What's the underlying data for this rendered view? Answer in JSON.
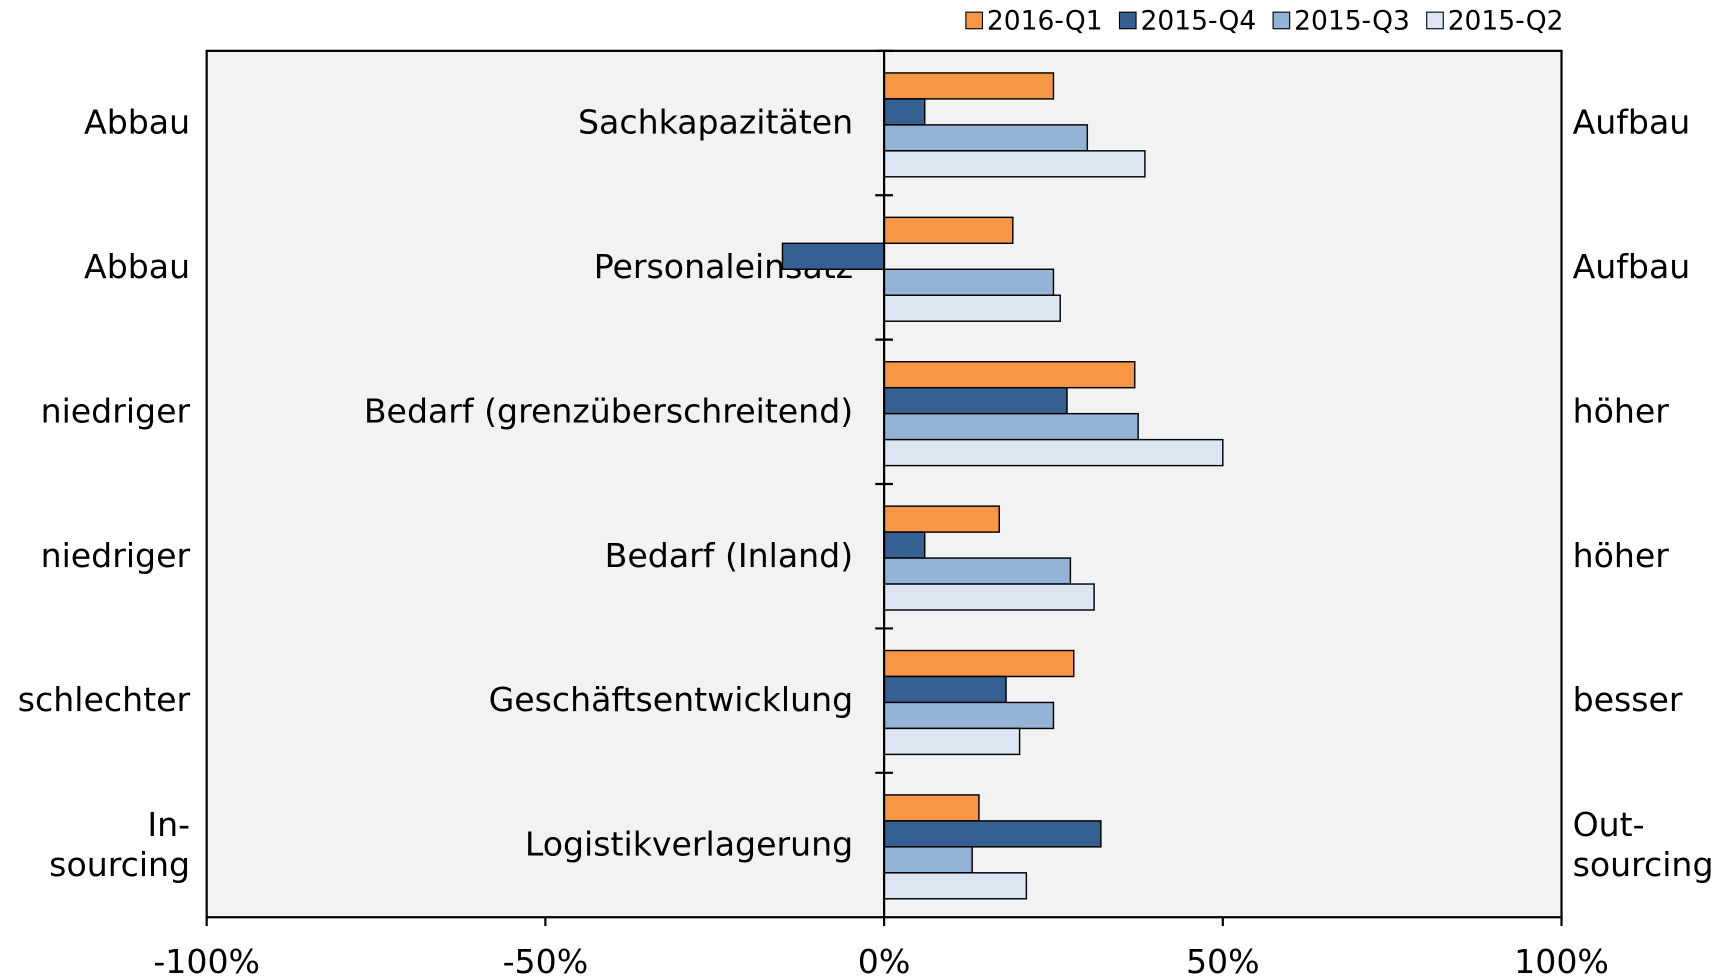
{
  "chart_data": {
    "type": "bar",
    "orientation": "horizontal",
    "categories": [
      "Sachkapazitäten",
      "Personaleinsatz",
      "Bedarf (grenzüberschreitend)",
      "Bedarf (Inland)",
      "Geschäftsentwicklung",
      "Logistikverlagerung"
    ],
    "left_labels": [
      "Abbau",
      "Abbau",
      "niedriger",
      "niedriger",
      "schlechter",
      "In-\nsourcing"
    ],
    "right_labels": [
      "Aufbau",
      "Aufbau",
      "höher",
      "höher",
      "besser",
      "Out-\nsourcing"
    ],
    "series": [
      {
        "name": "2016-Q1",
        "color": "#f79646",
        "values": [
          25,
          19,
          37,
          17,
          28,
          14
        ]
      },
      {
        "name": "2015-Q4",
        "color": "#366092",
        "values": [
          6,
          -15,
          27,
          6,
          18,
          32
        ]
      },
      {
        "name": "2015-Q3",
        "color": "#95b3d7",
        "values": [
          30,
          25,
          37.5,
          27.5,
          25,
          13
        ]
      },
      {
        "name": "2015-Q2",
        "color": "#dce6f2",
        "values": [
          38.5,
          26,
          50,
          31,
          20,
          21
        ]
      }
    ],
    "xlim": [
      -100,
      100
    ],
    "xticks": [
      {
        "value": -100,
        "label": "-100%"
      },
      {
        "value": -50,
        "label": "-50%"
      },
      {
        "value": 0,
        "label": "0%"
      },
      {
        "value": 50,
        "label": "50%"
      },
      {
        "value": 100,
        "label": "100%"
      }
    ],
    "grid": false,
    "legend": "top-right"
  }
}
